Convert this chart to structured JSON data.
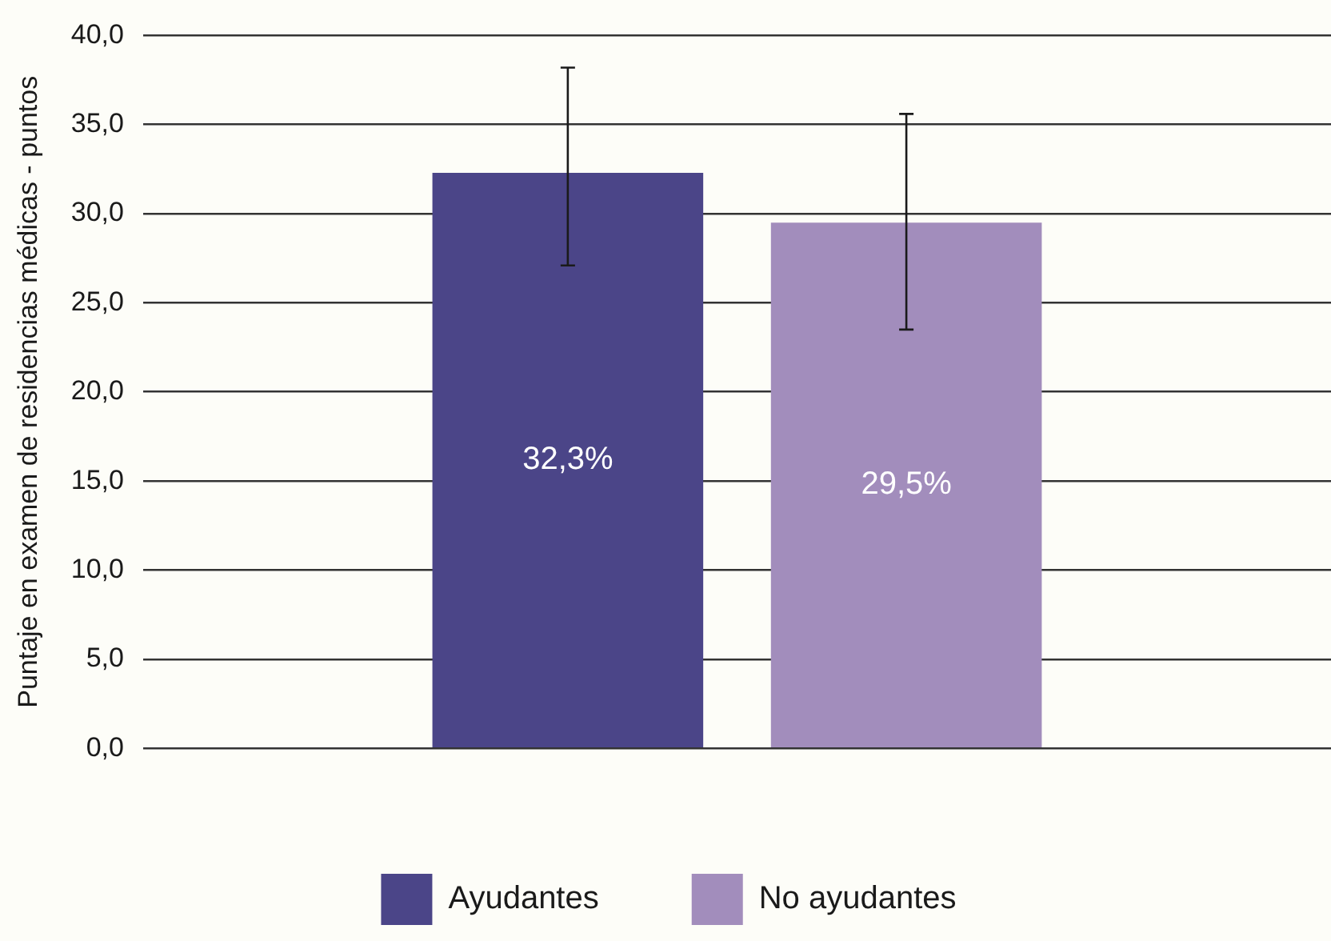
{
  "chart_data": {
    "type": "bar",
    "ylabel": "Puntaje en examen de residencias médicas - puntos",
    "categories": [
      null
    ],
    "series": [
      {
        "name": "Ayudantes",
        "color": "#4b4588",
        "values": [
          32.3
        ],
        "errors": [
          [
            27.1,
            38.2
          ]
        ],
        "value_labels": [
          "32,3%"
        ]
      },
      {
        "name": "No ayudantes",
        "color": "#a28dbc",
        "values": [
          29.5
        ],
        "errors": [
          [
            23.5,
            35.6
          ]
        ],
        "value_labels": [
          "29,5%"
        ]
      }
    ],
    "ylim": [
      0,
      40
    ],
    "yticks": [
      {
        "value": 0,
        "label": "0,0"
      },
      {
        "value": 5,
        "label": "5,0"
      },
      {
        "value": 10,
        "label": "10,0"
      },
      {
        "value": 15,
        "label": "15,0"
      },
      {
        "value": 20,
        "label": "20,0"
      },
      {
        "value": 25,
        "label": "25,0"
      },
      {
        "value": 30,
        "label": "30,0"
      },
      {
        "value": 35,
        "label": "35,0"
      },
      {
        "value": 40,
        "label": "40,0"
      }
    ],
    "grid": "y",
    "legend": "bottom"
  }
}
